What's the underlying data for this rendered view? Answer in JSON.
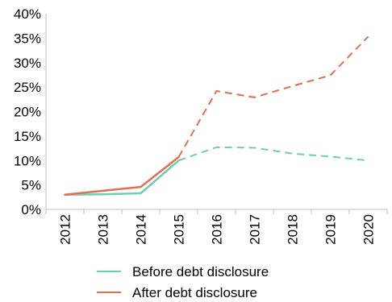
{
  "chart_data": {
    "type": "line",
    "title": "",
    "xlabel": "",
    "ylabel": "",
    "categories": [
      "2012",
      "2013",
      "2014",
      "2015",
      "2016",
      "2017",
      "2018",
      "2019",
      "2020"
    ],
    "y_ticks": [
      "0%",
      "5%",
      "10%",
      "15%",
      "20%",
      "25%",
      "30%",
      "35%",
      "40%"
    ],
    "ylim": [
      0,
      40
    ],
    "grid": false,
    "legend_position": "bottom",
    "series": [
      {
        "name": "Before debt disclosure",
        "color": "#6dcfb0",
        "values": [
          3.0,
          3.1,
          3.3,
          10.0,
          12.7,
          12.6,
          11.4,
          10.8,
          10.0
        ],
        "solid_until_index": 3
      },
      {
        "name": "After debt disclosure",
        "color": "#e07050",
        "values": [
          3.0,
          3.8,
          4.6,
          10.7,
          24.2,
          22.9,
          25.2,
          27.4,
          35.3
        ],
        "solid_until_index": 3
      }
    ]
  }
}
